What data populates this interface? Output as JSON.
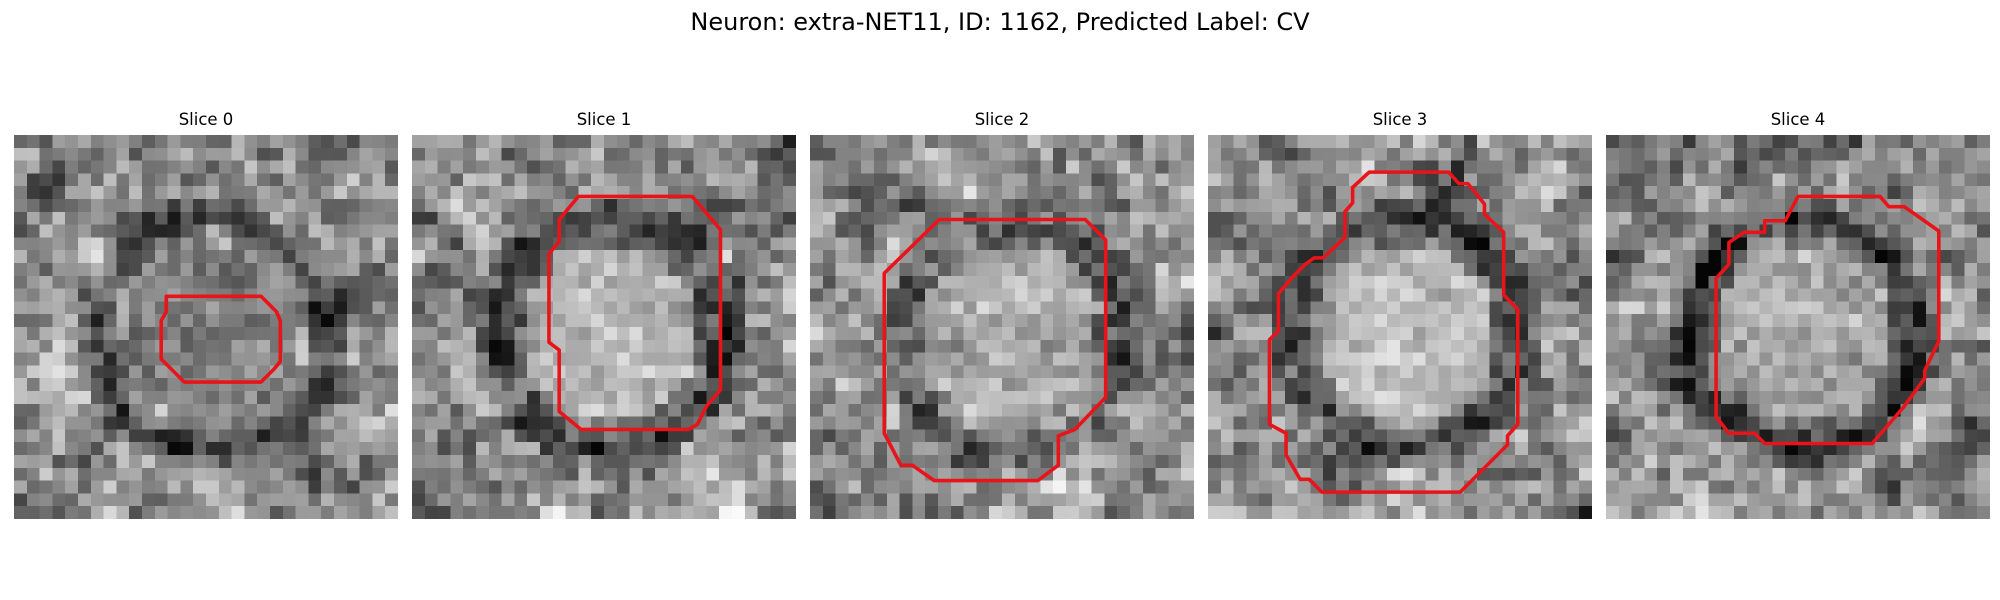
{
  "figure": {
    "title": "Neuron: extra-NET11, ID: 1162, Predicted Label: CV",
    "contour_color": "#e8141a",
    "panels": [
      {
        "title": "Slice 0",
        "seed": 11,
        "center_brightness": 0.45,
        "ring_darkness": 0.55
      },
      {
        "title": "Slice 1",
        "seed": 23,
        "center_brightness": 0.8,
        "ring_darkness": 0.55
      },
      {
        "title": "Slice 2",
        "seed": 37,
        "center_brightness": 0.75,
        "ring_darkness": 0.35
      },
      {
        "title": "Slice 3",
        "seed": 41,
        "center_brightness": 0.85,
        "ring_darkness": 0.6
      },
      {
        "title": "Slice 4",
        "seed": 53,
        "center_brightness": 0.72,
        "ring_darkness": 0.6
      }
    ]
  }
}
